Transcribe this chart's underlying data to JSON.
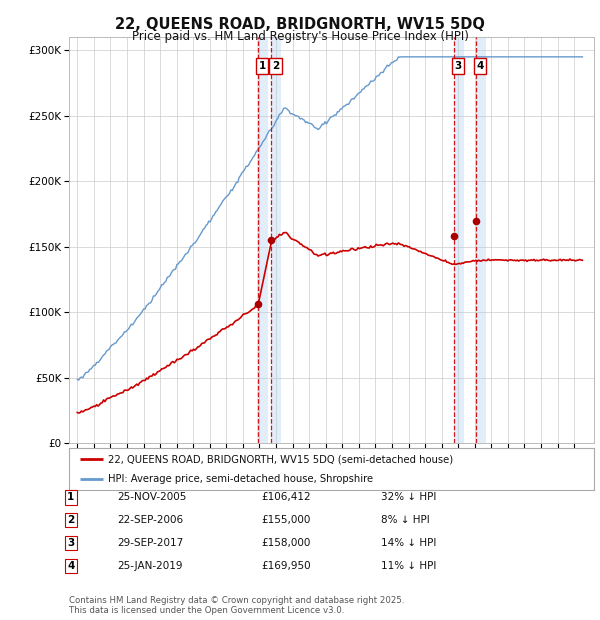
{
  "title": "22, QUEENS ROAD, BRIDGNORTH, WV15 5DQ",
  "subtitle": "Price paid vs. HM Land Registry's House Price Index (HPI)",
  "ylim": [
    0,
    310000
  ],
  "yticks": [
    0,
    50000,
    100000,
    150000,
    200000,
    250000,
    300000
  ],
  "ytick_labels": [
    "£0",
    "£50K",
    "£100K",
    "£150K",
    "£200K",
    "£250K",
    "£300K"
  ],
  "sale_dates_num": [
    2005.9,
    2006.72,
    2017.75,
    2019.07
  ],
  "sale_prices": [
    106412,
    155000,
    158000,
    169950
  ],
  "sale_labels": [
    "1",
    "2",
    "3",
    "4"
  ],
  "vline_color": "#cc0000",
  "vspan_color": "#aaccee",
  "vspan_alpha": 0.35,
  "hpi_line_color": "#6699cc",
  "price_line_color": "#cc0000",
  "legend_label_price": "22, QUEENS ROAD, BRIDGNORTH, WV15 5DQ (semi-detached house)",
  "legend_label_hpi": "HPI: Average price, semi-detached house, Shropshire",
  "table_rows": [
    [
      "1",
      "25-NOV-2005",
      "£106,412",
      "32% ↓ HPI"
    ],
    [
      "2",
      "22-SEP-2006",
      "£155,000",
      "8% ↓ HPI"
    ],
    [
      "3",
      "29-SEP-2017",
      "£158,000",
      "14% ↓ HPI"
    ],
    [
      "4",
      "25-JAN-2019",
      "£169,950",
      "11% ↓ HPI"
    ]
  ],
  "footnote": "Contains HM Land Registry data © Crown copyright and database right 2025.\nThis data is licensed under the Open Government Licence v3.0.",
  "background_color": "#ffffff",
  "grid_color": "#cccccc"
}
